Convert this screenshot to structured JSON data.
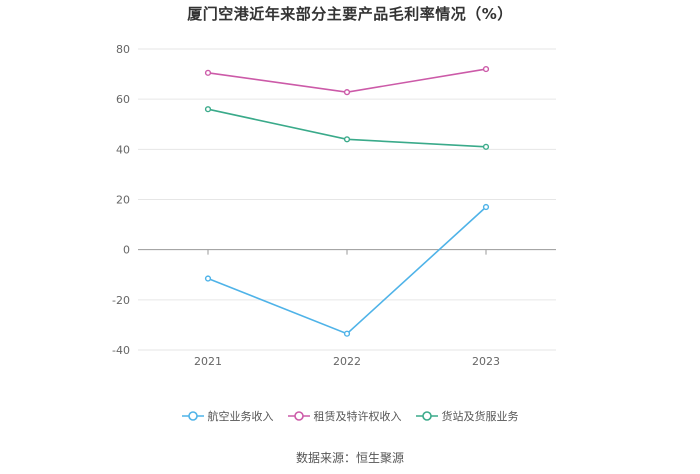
{
  "chart_data": {
    "type": "line",
    "title": "厦门空港近年来部分主要产品毛利率情况（%）",
    "categories": [
      "2021",
      "2022",
      "2023"
    ],
    "series": [
      {
        "name": "航空业务收入",
        "values": [
          -11.5,
          -33.5,
          17.0
        ],
        "color": "#4fb3e8"
      },
      {
        "name": "租赁及特许权收入",
        "values": [
          70.5,
          62.8,
          72.0
        ],
        "color": "#cc5aa8"
      },
      {
        "name": "货站及货服业务",
        "values": [
          56.0,
          44.0,
          41.0
        ],
        "color": "#3aaa8a"
      }
    ],
    "yticks": [
      "80",
      "60",
      "40",
      "20",
      "0",
      "-20",
      "-40"
    ],
    "ylim": [
      -40,
      80
    ],
    "xlabel": "",
    "ylabel": "",
    "grid": true,
    "legend_position": "bottom"
  },
  "source": "数据来源：恒生聚源"
}
